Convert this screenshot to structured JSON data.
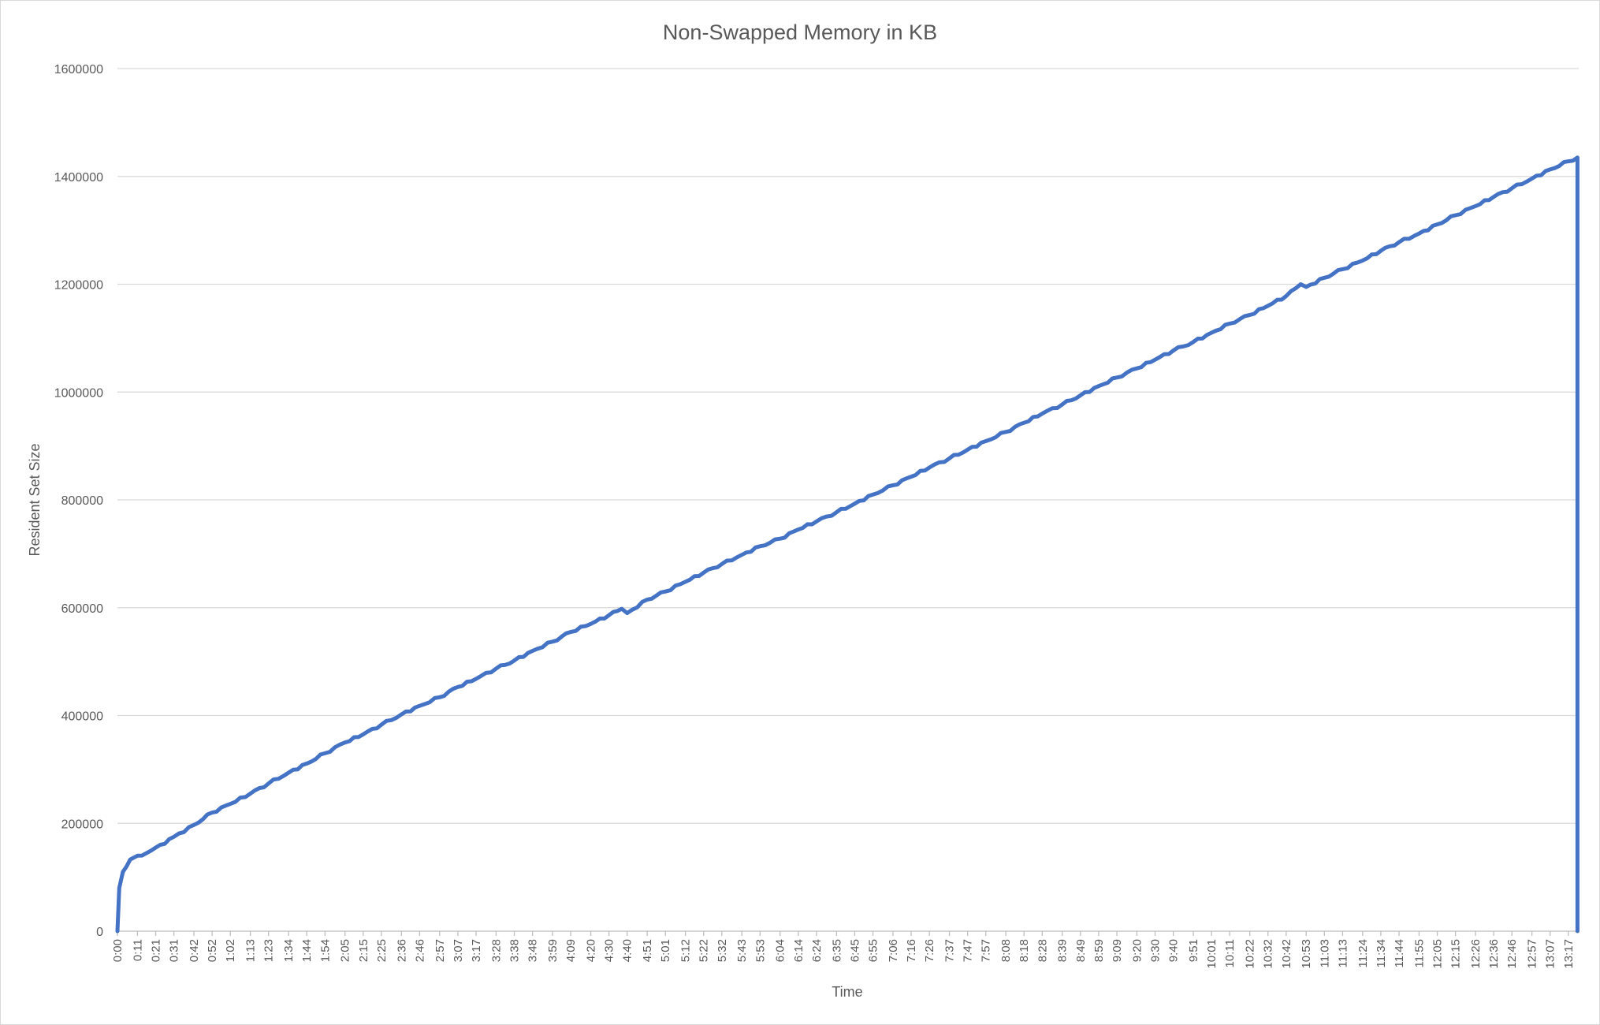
{
  "chart_data": {
    "type": "line",
    "title": "Non-Swapped Memory in KB",
    "xlabel": "Time",
    "ylabel": "Resident Set Size",
    "ylim": [
      0,
      1600000
    ],
    "yticks": [
      "0",
      "200000",
      "400000",
      "600000",
      "800000",
      "1000000",
      "1200000",
      "1400000",
      "1600000"
    ],
    "x_tick_labels": [
      "0:00",
      "0:11",
      "0:21",
      "0:31",
      "0:42",
      "0:52",
      "1:02",
      "1:13",
      "1:23",
      "1:34",
      "1:44",
      "1:54",
      "2:05",
      "2:15",
      "2:25",
      "2:36",
      "2:46",
      "2:57",
      "3:07",
      "3:17",
      "3:28",
      "3:38",
      "3:48",
      "3:59",
      "4:09",
      "4:20",
      "4:30",
      "4:40",
      "4:51",
      "5:01",
      "5:12",
      "5:22",
      "5:32",
      "5:43",
      "5:53",
      "6:04",
      "6:14",
      "6:24",
      "6:35",
      "6:45",
      "6:55",
      "7:06",
      "7:16",
      "7:26",
      "7:37",
      "7:47",
      "7:57",
      "8:08",
      "8:18",
      "8:28",
      "8:39",
      "8:49",
      "8:59",
      "9:09",
      "9:20",
      "9:30",
      "9:40",
      "9:51",
      "10:01",
      "10:11",
      "10:22",
      "10:32",
      "10:42",
      "10:53",
      "11:03",
      "11:13",
      "11:24",
      "11:34",
      "11:44",
      "11:55",
      "12:05",
      "12:15",
      "12:26",
      "12:36",
      "12:46",
      "12:57",
      "13:07",
      "13:17"
    ],
    "grid": true,
    "legend": "none",
    "series": [
      {
        "color": "#4472c4",
        "points": [
          [
            "0:00",
            0
          ],
          [
            "0:01",
            80000
          ],
          [
            "0:03",
            110000
          ],
          [
            "0:05",
            120000
          ],
          [
            "0:07",
            133000
          ],
          [
            "0:11",
            140000
          ],
          [
            "0:16",
            145000
          ],
          [
            "0:21",
            155000
          ],
          [
            "0:26",
            162000
          ],
          [
            "0:31",
            175000
          ],
          [
            "0:42",
            197000
          ],
          [
            "0:52",
            220000
          ],
          [
            "1:02",
            236000
          ],
          [
            "1:13",
            255000
          ],
          [
            "1:23",
            274000
          ],
          [
            "1:34",
            294000
          ],
          [
            "1:44",
            311000
          ],
          [
            "1:54",
            330000
          ],
          [
            "2:05",
            350000
          ],
          [
            "2:15",
            365000
          ],
          [
            "2:25",
            383000
          ],
          [
            "2:36",
            402000
          ],
          [
            "2:46",
            418000
          ],
          [
            "2:57",
            434000
          ],
          [
            "3:07",
            453000
          ],
          [
            "3:17",
            468000
          ],
          [
            "3:28",
            487000
          ],
          [
            "3:38",
            502000
          ],
          [
            "3:48",
            520000
          ],
          [
            "3:59",
            537000
          ],
          [
            "4:09",
            555000
          ],
          [
            "4:20",
            570000
          ],
          [
            "4:30",
            586000
          ],
          [
            "4:37",
            598000
          ],
          [
            "4:40",
            590000
          ],
          [
            "4:51",
            615000
          ],
          [
            "5:01",
            630000
          ],
          [
            "5:12",
            648000
          ],
          [
            "5:22",
            665000
          ],
          [
            "5:32",
            681000
          ],
          [
            "5:43",
            698000
          ],
          [
            "5:53",
            714000
          ],
          [
            "6:04",
            728000
          ],
          [
            "6:14",
            745000
          ],
          [
            "6:24",
            760000
          ],
          [
            "6:35",
            777000
          ],
          [
            "6:45",
            793000
          ],
          [
            "6:55",
            810000
          ],
          [
            "7:06",
            827000
          ],
          [
            "7:16",
            843000
          ],
          [
            "7:26",
            860000
          ],
          [
            "7:37",
            877000
          ],
          [
            "7:47",
            893000
          ],
          [
            "7:57",
            909000
          ],
          [
            "8:08",
            926000
          ],
          [
            "8:18",
            943000
          ],
          [
            "8:28",
            960000
          ],
          [
            "8:39",
            977000
          ],
          [
            "8:49",
            994000
          ],
          [
            "8:59",
            1011000
          ],
          [
            "9:09",
            1027000
          ],
          [
            "9:20",
            1044000
          ],
          [
            "9:30",
            1060000
          ],
          [
            "9:40",
            1077000
          ],
          [
            "9:51",
            1093000
          ],
          [
            "10:01",
            1110000
          ],
          [
            "10:11",
            1127000
          ],
          [
            "10:22",
            1143000
          ],
          [
            "10:32",
            1160000
          ],
          [
            "10:42",
            1178000
          ],
          [
            "10:50",
            1200000
          ],
          [
            "10:53",
            1195000
          ],
          [
            "11:03",
            1212000
          ],
          [
            "11:13",
            1228000
          ],
          [
            "11:24",
            1244000
          ],
          [
            "11:34",
            1262000
          ],
          [
            "11:44",
            1278000
          ],
          [
            "11:55",
            1294000
          ],
          [
            "12:05",
            1311000
          ],
          [
            "12:15",
            1328000
          ],
          [
            "12:26",
            1345000
          ],
          [
            "12:36",
            1362000
          ],
          [
            "12:46",
            1378000
          ],
          [
            "12:57",
            1396000
          ],
          [
            "13:07",
            1413000
          ],
          [
            "13:17",
            1428000
          ],
          [
            "13:22",
            1435000
          ],
          [
            "13:22",
            0
          ]
        ]
      }
    ]
  }
}
